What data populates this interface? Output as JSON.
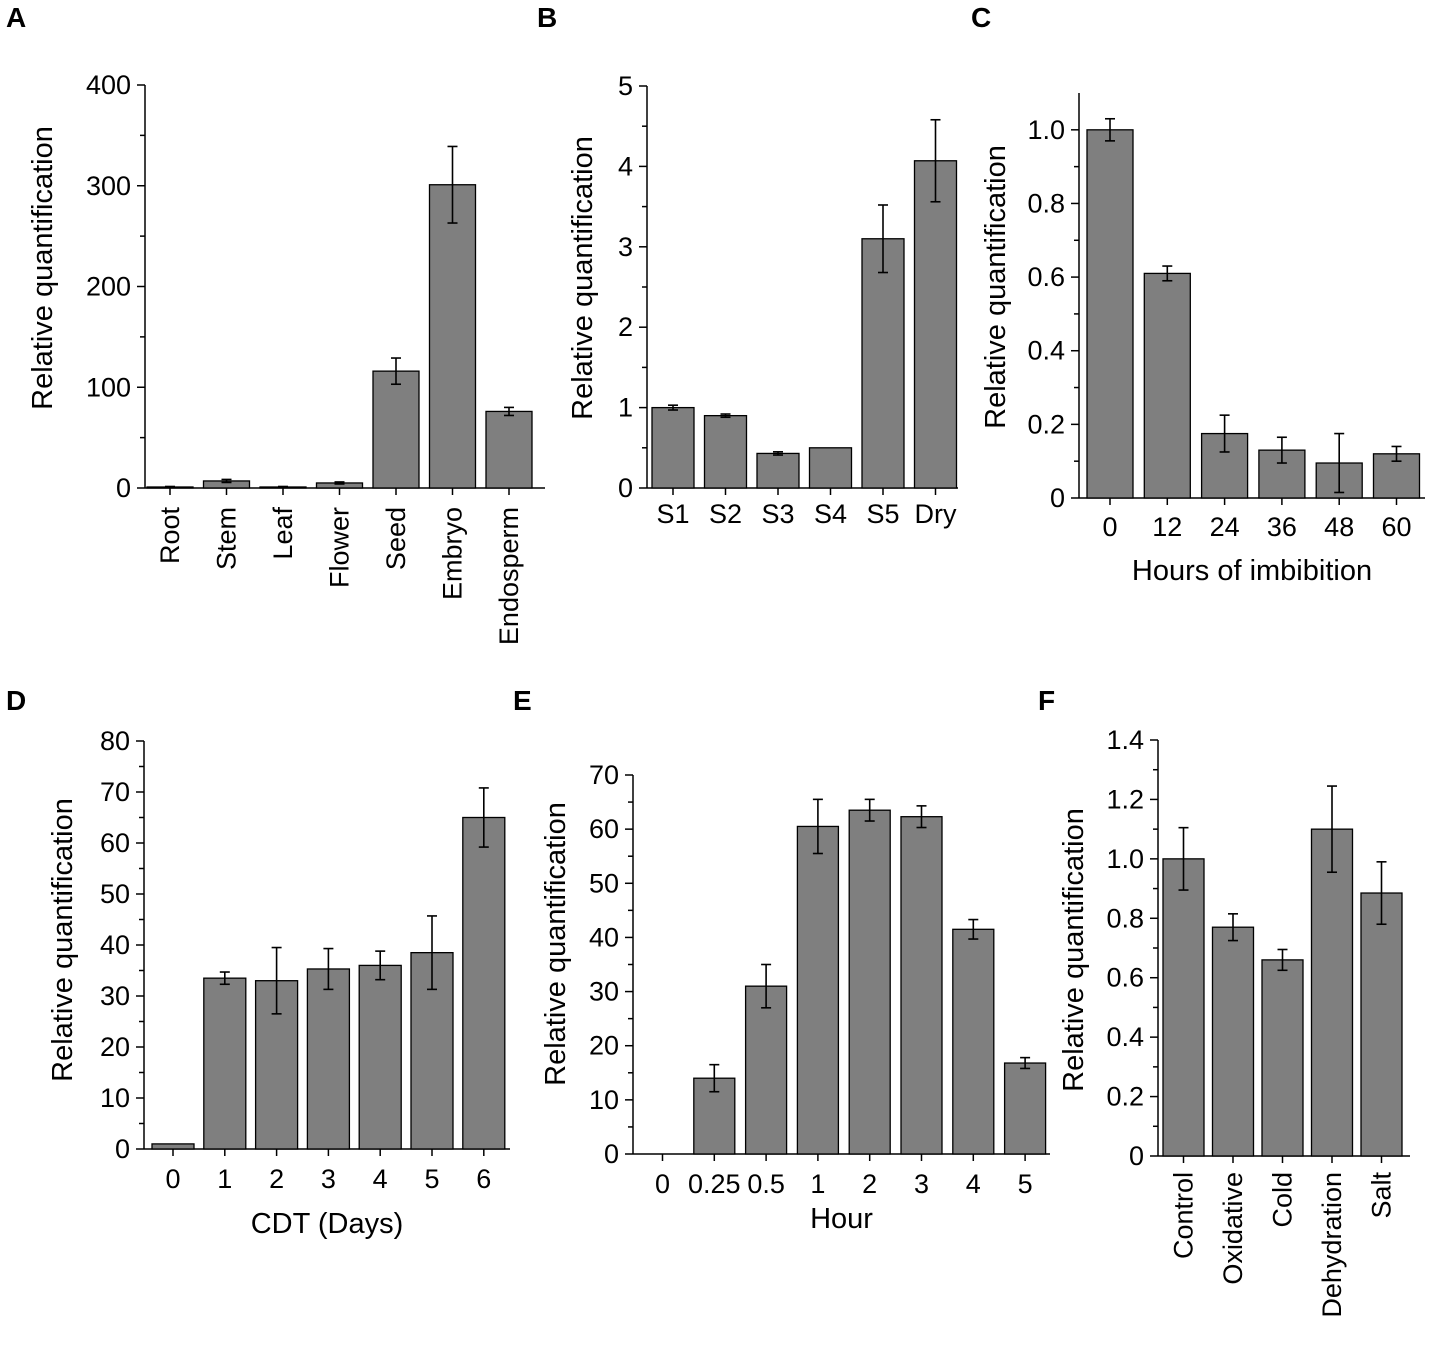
{
  "colors": {
    "bar_fill": "#7f7f7f",
    "bar_stroke": "#000000"
  },
  "chart_data": [
    {
      "panel": "A",
      "type": "bar",
      "title": "",
      "xlabel": "",
      "ylabel": "Relative quantification",
      "ylim": [
        0,
        400
      ],
      "yticks": [
        "0",
        "100",
        "200",
        "300",
        "400"
      ],
      "categories": [
        "Root",
        "Stem",
        "Leaf",
        "Flower",
        "Seed",
        "Embryo",
        "Endosperm"
      ],
      "values": [
        1,
        7,
        1,
        5,
        116,
        301,
        76
      ],
      "errors": [
        0.5,
        1.5,
        0.5,
        1,
        13,
        38,
        4
      ]
    },
    {
      "panel": "B",
      "type": "bar",
      "title": "",
      "xlabel": "",
      "ylabel": "Relative quantification",
      "ylim": [
        0,
        5
      ],
      "yticks": [
        "0",
        "1",
        "2",
        "3",
        "4",
        "5"
      ],
      "categories": [
        "S1",
        "S2",
        "S3",
        "S4",
        "S5",
        "Dry"
      ],
      "values": [
        1.0,
        0.9,
        0.43,
        0.5,
        3.1,
        4.07
      ],
      "errors": [
        0.03,
        0.02,
        0.02,
        0,
        0.42,
        0.51
      ]
    },
    {
      "panel": "C",
      "type": "bar",
      "title": "",
      "xlabel": "Hours of imbibition",
      "ylabel": "Relative quantification",
      "ylim": [
        0,
        1.1
      ],
      "yticks": [
        "0",
        "0.2",
        "0.4",
        "0.6",
        "0.8",
        "1.0"
      ],
      "categories": [
        "0",
        "12",
        "24",
        "36",
        "48",
        "60"
      ],
      "values": [
        1.0,
        0.61,
        0.175,
        0.13,
        0.095,
        0.12
      ],
      "errors": [
        0.03,
        0.02,
        0.05,
        0.035,
        0.08,
        0.02
      ]
    },
    {
      "panel": "D",
      "type": "bar",
      "title": "",
      "xlabel": "CDT (Days)",
      "ylabel": "Relative quantification",
      "ylim": [
        0,
        80
      ],
      "yticks": [
        "0",
        "10",
        "20",
        "30",
        "40",
        "50",
        "60",
        "70",
        "80"
      ],
      "categories": [
        "0",
        "1",
        "2",
        "3",
        "4",
        "5",
        "6"
      ],
      "values": [
        1,
        33.5,
        33,
        35.3,
        36,
        38.5,
        65
      ],
      "errors": [
        0,
        1.2,
        6.5,
        4,
        2.8,
        7.2,
        5.8
      ]
    },
    {
      "panel": "E",
      "type": "bar",
      "title": "",
      "xlabel": "Hour",
      "ylabel": "Relative quantification",
      "ylim": [
        0,
        70
      ],
      "yticks": [
        "0",
        "10",
        "20",
        "30",
        "40",
        "50",
        "60",
        "70"
      ],
      "categories": [
        "0",
        "0.25",
        "0.5",
        "1",
        "2",
        "3",
        "4",
        "5"
      ],
      "values": [
        0,
        14,
        31,
        60.5,
        63.5,
        62.3,
        41.5,
        16.8
      ],
      "errors": [
        0,
        2.5,
        4,
        5,
        2,
        2,
        1.8,
        1
      ]
    },
    {
      "panel": "F",
      "type": "bar",
      "title": "",
      "xlabel": "",
      "ylabel": "Relative quantification",
      "ylim": [
        0,
        1.4
      ],
      "yticks": [
        "0",
        "0.2",
        "0.4",
        "0.6",
        "0.8",
        "1.0",
        "1.2",
        "1.4"
      ],
      "categories": [
        "Control",
        "Oxidative",
        "Cold",
        "Dehydration",
        "Salt"
      ],
      "values": [
        1.0,
        0.77,
        0.66,
        1.1,
        0.885
      ],
      "errors": [
        0.105,
        0.045,
        0.035,
        0.145,
        0.105
      ]
    }
  ]
}
